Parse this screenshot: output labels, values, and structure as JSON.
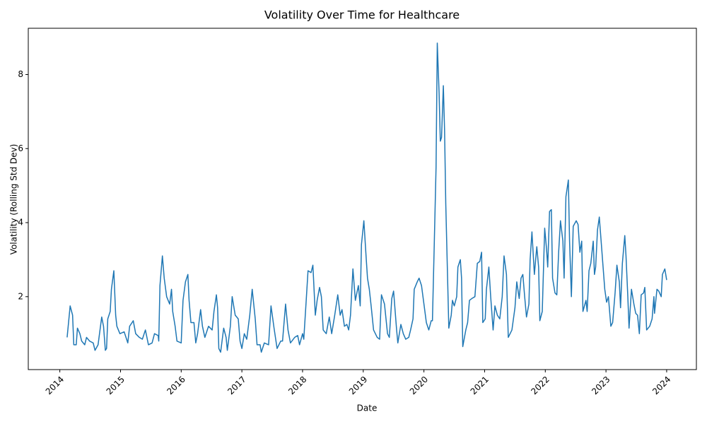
{
  "chart_data": {
    "type": "line",
    "title": "Volatility Over Time for Healthcare",
    "x_label": "Date",
    "y_label": "Volatility (Rolling Std Dev)",
    "xlim": [
      2013.48,
      2024.49
    ],
    "xticks": [
      2014,
      2015,
      2016,
      2017,
      2018,
      2019,
      2020,
      2021,
      2022,
      2023,
      2024
    ],
    "ylim": [
      0.03,
      9.25
    ],
    "yticks": [
      2,
      4,
      6,
      8
    ],
    "grid": false,
    "series": [
      {
        "color": "#1f77b4",
        "x": [
          2014.12,
          2014.17,
          2014.21,
          2014.23,
          2014.27,
          2014.29,
          2014.33,
          2014.36,
          2014.41,
          2014.44,
          2014.49,
          2014.55,
          2014.58,
          2014.63,
          2014.69,
          2014.72,
          2014.75,
          2014.77,
          2014.79,
          2014.83,
          2014.85,
          2014.89,
          2014.92,
          2014.94,
          2014.99,
          2015.06,
          2015.12,
          2015.15,
          2015.21,
          2015.25,
          2015.31,
          2015.36,
          2015.41,
          2015.46,
          2015.52,
          2015.56,
          2015.62,
          2015.63,
          2015.65,
          2015.69,
          2015.72,
          2015.76,
          2015.81,
          2015.84,
          2015.86,
          2015.9,
          2015.93,
          2016.0,
          2016.03,
          2016.07,
          2016.11,
          2016.13,
          2016.16,
          2016.21,
          2016.24,
          2016.27,
          2016.32,
          2016.35,
          2016.39,
          2016.45,
          2016.51,
          2016.54,
          2016.58,
          2016.6,
          2016.62,
          2016.65,
          2016.7,
          2016.74,
          2016.76,
          2016.81,
          2016.84,
          2016.89,
          2016.94,
          2016.97,
          2017.0,
          2017.04,
          2017.08,
          2017.13,
          2017.17,
          2017.22,
          2017.25,
          2017.3,
          2017.32,
          2017.37,
          2017.44,
          2017.48,
          2017.53,
          2017.58,
          2017.64,
          2017.67,
          2017.72,
          2017.76,
          2017.8,
          2017.87,
          2017.92,
          2017.95,
          2018.0,
          2018.02,
          2018.06,
          2018.09,
          2018.14,
          2018.17,
          2018.21,
          2018.24,
          2018.28,
          2018.31,
          2018.34,
          2018.39,
          2018.44,
          2018.48,
          2018.53,
          2018.58,
          2018.62,
          2018.65,
          2018.69,
          2018.73,
          2018.76,
          2018.79,
          2018.83,
          2018.87,
          2018.92,
          2018.95,
          2018.97,
          2019.01,
          2019.05,
          2019.07,
          2019.1,
          2019.13,
          2019.17,
          2019.23,
          2019.27,
          2019.3,
          2019.35,
          2019.4,
          2019.43,
          2019.47,
          2019.5,
          2019.55,
          2019.57,
          2019.62,
          2019.66,
          2019.7,
          2019.75,
          2019.78,
          2019.82,
          2019.84,
          2019.89,
          2019.92,
          2019.96,
          2020.0,
          2020.04,
          2020.08,
          2020.12,
          2020.14,
          2020.17,
          2020.2,
          2020.22,
          2020.25,
          2020.27,
          2020.29,
          2020.32,
          2020.34,
          2020.36,
          2020.39,
          2020.41,
          2020.45,
          2020.47,
          2020.5,
          2020.54,
          2020.56,
          2020.6,
          2020.62,
          2020.64,
          2020.69,
          2020.72,
          2020.75,
          2020.79,
          2020.84,
          2020.88,
          2020.92,
          2020.95,
          2020.97,
          2021.01,
          2021.03,
          2021.07,
          2021.1,
          2021.14,
          2021.17,
          2021.21,
          2021.25,
          2021.29,
          2021.32,
          2021.36,
          2021.39,
          2021.45,
          2021.5,
          2021.53,
          2021.57,
          2021.6,
          2021.63,
          2021.66,
          2021.69,
          2021.73,
          2021.75,
          2021.78,
          2021.82,
          2021.86,
          2021.89,
          2021.91,
          2021.95,
          2021.99,
          2022.02,
          2022.04,
          2022.07,
          2022.1,
          2022.12,
          2022.16,
          2022.19,
          2022.22,
          2022.25,
          2022.29,
          2022.31,
          2022.34,
          2022.38,
          2022.4,
          2022.43,
          2022.46,
          2022.51,
          2022.54,
          2022.57,
          2022.6,
          2022.62,
          2022.67,
          2022.69,
          2022.72,
          2022.75,
          2022.79,
          2022.81,
          2022.83,
          2022.86,
          2022.89,
          2022.92,
          2022.95,
          2022.98,
          2023.01,
          2023.04,
          2023.08,
          2023.11,
          2023.15,
          2023.18,
          2023.22,
          2023.24,
          2023.27,
          2023.31,
          2023.33,
          2023.36,
          2023.38,
          2023.42,
          2023.46,
          2023.49,
          2023.52,
          2023.55,
          2023.58,
          2023.62,
          2023.64,
          2023.67,
          2023.72,
          2023.76,
          2023.79,
          2023.8,
          2023.84,
          2023.87,
          2023.91,
          2023.93,
          2023.97,
          2024.0
        ],
        "values": [
          0.9,
          1.75,
          1.5,
          0.7,
          0.7,
          1.15,
          1.0,
          0.8,
          0.7,
          0.9,
          0.8,
          0.75,
          0.55,
          0.7,
          1.45,
          1.2,
          0.55,
          0.6,
          1.4,
          1.6,
          2.2,
          2.7,
          1.5,
          1.2,
          1.0,
          1.05,
          0.75,
          1.2,
          1.35,
          1.0,
          0.9,
          0.85,
          1.1,
          0.7,
          0.75,
          1.0,
          0.95,
          0.8,
          2.3,
          3.1,
          2.5,
          2.0,
          1.8,
          2.2,
          1.6,
          1.2,
          0.8,
          0.75,
          1.9,
          2.4,
          2.6,
          1.9,
          1.3,
          1.3,
          0.75,
          1.0,
          1.65,
          1.2,
          0.9,
          1.2,
          1.1,
          1.6,
          2.05,
          1.7,
          0.6,
          0.5,
          1.15,
          0.9,
          0.55,
          1.2,
          2.0,
          1.5,
          1.4,
          0.8,
          0.6,
          1.0,
          0.85,
          1.5,
          2.2,
          1.4,
          0.7,
          0.7,
          0.5,
          0.75,
          0.7,
          1.75,
          1.15,
          0.6,
          0.8,
          0.8,
          1.8,
          1.1,
          0.75,
          0.9,
          0.95,
          0.7,
          1.0,
          0.85,
          1.9,
          2.7,
          2.65,
          2.85,
          1.5,
          1.9,
          2.25,
          2.0,
          1.1,
          1.0,
          1.45,
          1.0,
          1.5,
          2.05,
          1.5,
          1.65,
          1.2,
          1.25,
          1.1,
          1.5,
          2.75,
          1.9,
          2.3,
          1.75,
          3.4,
          4.05,
          3.0,
          2.5,
          2.2,
          1.75,
          1.1,
          0.9,
          0.85,
          2.05,
          1.8,
          1.0,
          0.9,
          1.95,
          2.15,
          1.1,
          0.75,
          1.25,
          1.0,
          0.85,
          0.9,
          1.1,
          1.4,
          2.2,
          2.4,
          2.5,
          2.3,
          1.8,
          1.3,
          1.1,
          1.35,
          1.35,
          3.4,
          5.5,
          8.85,
          7.5,
          6.2,
          6.3,
          7.7,
          6.5,
          4.5,
          2.5,
          1.15,
          1.5,
          1.9,
          1.75,
          2.0,
          2.8,
          3.0,
          2.5,
          0.65,
          1.1,
          1.3,
          1.9,
          1.95,
          2.0,
          2.9,
          2.95,
          3.2,
          1.3,
          1.4,
          2.2,
          2.8,
          2.0,
          1.1,
          1.75,
          1.5,
          1.4,
          2.0,
          3.1,
          2.6,
          0.9,
          1.1,
          1.7,
          2.4,
          1.95,
          2.5,
          2.6,
          2.0,
          1.45,
          1.8,
          3.0,
          3.75,
          2.6,
          3.35,
          2.8,
          1.35,
          1.6,
          3.85,
          3.3,
          2.8,
          4.3,
          4.35,
          2.5,
          2.1,
          2.05,
          3.2,
          4.05,
          3.5,
          2.5,
          4.7,
          5.15,
          3.5,
          2.0,
          3.9,
          4.05,
          3.95,
          3.2,
          3.5,
          1.6,
          1.9,
          1.6,
          2.7,
          2.9,
          3.5,
          2.6,
          2.8,
          3.8,
          4.15,
          3.5,
          2.85,
          2.2,
          1.85,
          2.0,
          1.2,
          1.3,
          2.1,
          2.85,
          2.4,
          1.7,
          2.9,
          3.65,
          3.1,
          2.0,
          1.15,
          2.2,
          1.8,
          1.55,
          1.5,
          1.0,
          2.05,
          2.1,
          2.25,
          1.1,
          1.2,
          1.4,
          2.0,
          1.55,
          2.2,
          2.15,
          2.0,
          2.6,
          2.75,
          2.45
        ]
      }
    ]
  }
}
